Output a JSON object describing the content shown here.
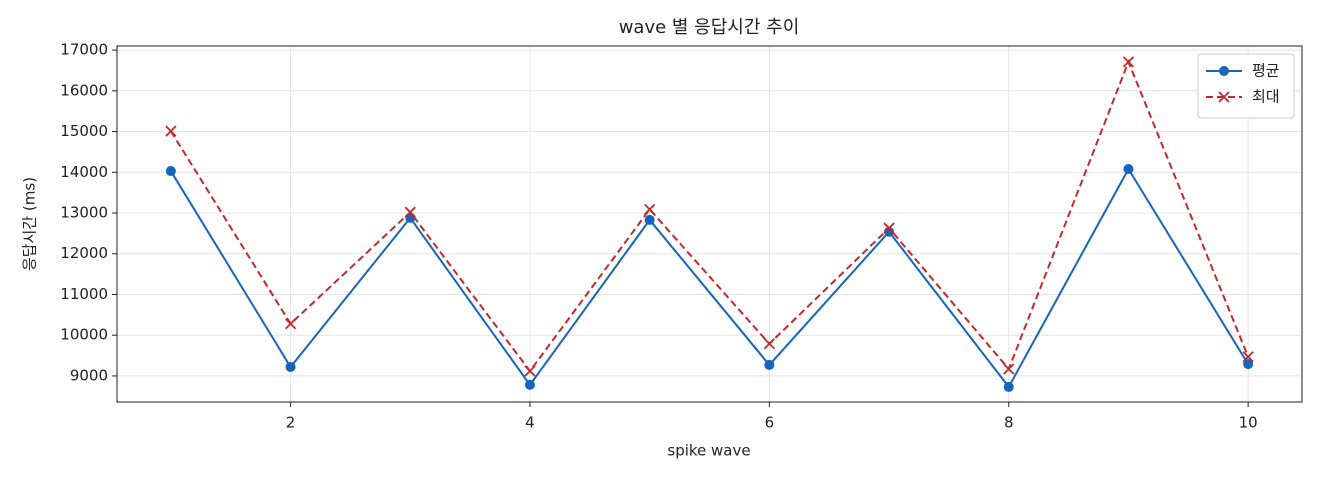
{
  "chart_data": {
    "type": "line",
    "title": "wave 별 응답시간 추이",
    "xlabel": "spike wave",
    "ylabel": "응답시간 (ms)",
    "x": [
      1,
      2,
      3,
      4,
      5,
      6,
      7,
      8,
      9,
      10
    ],
    "series": [
      {
        "name": "평균",
        "color": "#1565c0",
        "marker": "o",
        "linestyle": "solid",
        "values": [
          14030,
          9220,
          12880,
          8780,
          12830,
          9270,
          12540,
          8730,
          14080,
          9290
        ]
      },
      {
        "name": "최대",
        "color": "#c62828",
        "marker": "x",
        "linestyle": "dashed",
        "values": [
          15010,
          10280,
          13020,
          9120,
          13090,
          9790,
          12630,
          9170,
          16710,
          9470
        ]
      }
    ],
    "xlim": [
      0.55,
      10.45
    ],
    "xticks": [
      2,
      4,
      6,
      8,
      10
    ],
    "ylim": [
      8360,
      17100
    ],
    "yticks": [
      9000,
      10000,
      11000,
      12000,
      13000,
      14000,
      15000,
      16000,
      17000
    ],
    "grid": true,
    "legend": "upper right"
  }
}
